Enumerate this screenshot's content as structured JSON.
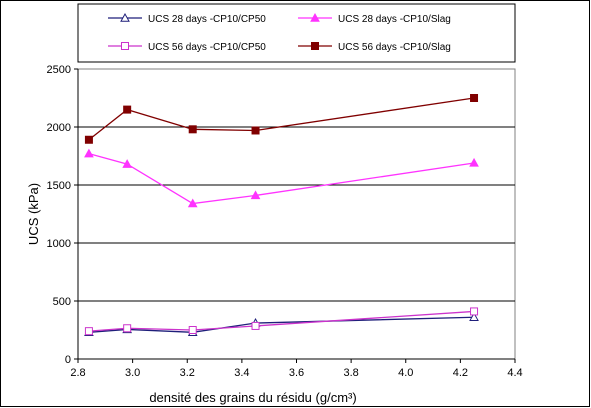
{
  "chart_data": {
    "type": "line",
    "xlabel": "densité des grains du résidu (g/cm³)",
    "ylabel": "UCS (kPa)",
    "xlim": [
      2.8,
      4.4
    ],
    "ylim": [
      0,
      2500
    ],
    "x_ticks": [
      "2.8",
      "3.0",
      "3.2",
      "3.4",
      "3.6",
      "3.8",
      "4.0",
      "4.2",
      "4.4"
    ],
    "y_ticks": [
      "0",
      "500",
      "1000",
      "1500",
      "2000",
      "2500"
    ],
    "grid": "horizontal",
    "legend_position": "top",
    "series": [
      {
        "name": "UCS 28 days -CP10/CP50",
        "color": "#1f1f7a",
        "marker": "triangle-open",
        "x": [
          2.84,
          2.98,
          3.22,
          3.45,
          4.25
        ],
        "y": [
          230,
          255,
          230,
          310,
          360
        ]
      },
      {
        "name": "UCS 28 days -CP10/Slag",
        "color": "#ff33ff",
        "marker": "triangle-filled",
        "x": [
          2.84,
          2.98,
          3.22,
          3.45,
          4.25
        ],
        "y": [
          1770,
          1680,
          1340,
          1410,
          1690
        ]
      },
      {
        "name": "UCS 56 days -CP10/CP50",
        "color": "#cc33cc",
        "marker": "square-open",
        "x": [
          2.84,
          2.98,
          3.22,
          3.45,
          4.25
        ],
        "y": [
          240,
          265,
          250,
          285,
          410
        ]
      },
      {
        "name": "UCS 56 days -CP10/Slag",
        "color": "#800000",
        "marker": "square-filled",
        "x": [
          2.84,
          2.98,
          3.22,
          3.45,
          4.25
        ],
        "y": [
          1890,
          2150,
          1980,
          1970,
          2250
        ]
      }
    ]
  }
}
